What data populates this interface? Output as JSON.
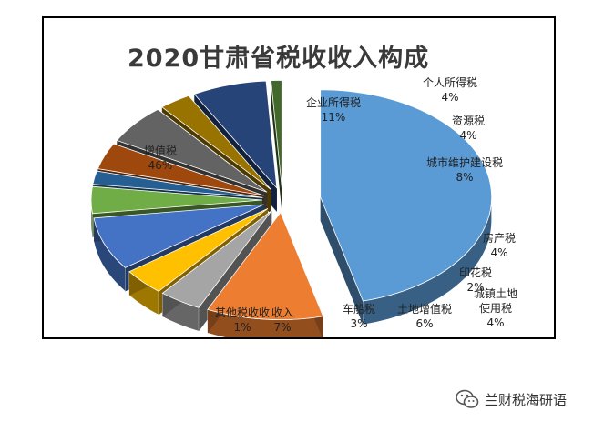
{
  "title": "2020甘肃省税收收入构成",
  "watermark": "兰财税海研语",
  "chart_data": {
    "type": "pie",
    "title": "2020甘肃省税收收入构成",
    "categories": [
      "增值税",
      "企业所得税",
      "个人所得税",
      "资源税",
      "城市维护建设税",
      "房产税",
      "印花税",
      "城镇土地使用税",
      "土地增值税",
      "车船税",
      "其他税收收入",
      "其他税收收入"
    ],
    "values": [
      46,
      11,
      4,
      4,
      8,
      4,
      2,
      4,
      6,
      3,
      7,
      1
    ],
    "labels": [
      {
        "name": "增值税",
        "pct": "46%"
      },
      {
        "name": "企业所得税",
        "pct": "11%"
      },
      {
        "name": "个人所得税",
        "pct": "4%"
      },
      {
        "name": "资源税",
        "pct": "4%"
      },
      {
        "name": "城市维护建设税",
        "pct": "8%"
      },
      {
        "name": "房产税",
        "pct": "4%"
      },
      {
        "name": "印花税",
        "pct": "2%"
      },
      {
        "name": "城镇土地",
        "name2": "使用税",
        "pct": "4%"
      },
      {
        "name": "土地增值税",
        "pct": "6%"
      },
      {
        "name": "车船税",
        "pct": "3%"
      },
      {
        "name": "收入",
        "pct": "7%"
      },
      {
        "name": "其他税收收",
        "pct": "1%"
      }
    ],
    "colors": [
      "#5b9bd5",
      "#ed7d31",
      "#a5a5a5",
      "#ffc000",
      "#4472c4",
      "#70ad47",
      "#255e91",
      "#9e480e",
      "#636363",
      "#997300",
      "#264478",
      "#43682b"
    ],
    "exploded": true,
    "legend": "none"
  }
}
